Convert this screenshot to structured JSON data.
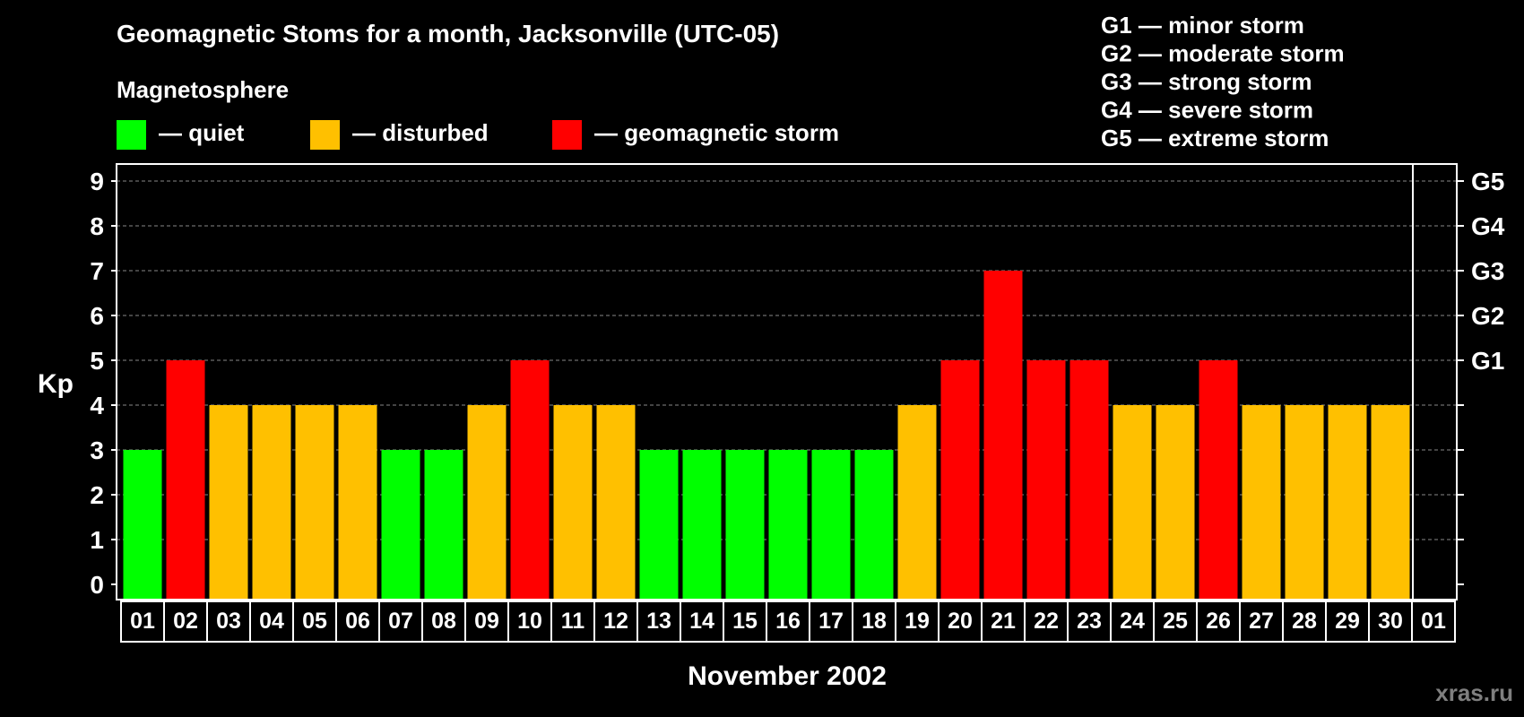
{
  "chart_data": {
    "type": "bar",
    "title": "Geomagnetic Stoms for a month, Jacksonville (UTC-05)",
    "xlabel": "November 2002",
    "ylabel": "Kp",
    "ylim": [
      0,
      9
    ],
    "yticks": [
      "0",
      "1",
      "2",
      "3",
      "4",
      "5",
      "6",
      "7",
      "8",
      "9"
    ],
    "categories": [
      "01",
      "02",
      "03",
      "04",
      "05",
      "06",
      "07",
      "08",
      "09",
      "10",
      "11",
      "12",
      "13",
      "14",
      "15",
      "16",
      "17",
      "18",
      "19",
      "20",
      "21",
      "22",
      "23",
      "24",
      "25",
      "26",
      "27",
      "28",
      "29",
      "30",
      "01"
    ],
    "values": [
      3,
      5,
      4,
      4,
      4,
      4,
      3,
      3,
      4,
      5,
      4,
      4,
      3,
      3,
      3,
      3,
      3,
      3,
      4,
      5,
      7,
      5,
      5,
      4,
      4,
      5,
      4,
      4,
      4,
      4,
      null
    ],
    "grid": "dashed horizontal",
    "right_axis": [
      {
        "label": "G1",
        "kp": 5
      },
      {
        "label": "G2",
        "kp": 6
      },
      {
        "label": "G3",
        "kp": 7
      },
      {
        "label": "G4",
        "kp": 8
      },
      {
        "label": "G5",
        "kp": 9
      }
    ],
    "legend": {
      "title": "Magnetosphere",
      "items": [
        {
          "label": "— quiet",
          "color": "#00ff00"
        },
        {
          "label": "— disturbed",
          "color": "#ffc000"
        },
        {
          "label": "— geomagnetic storm",
          "color": "#ff0000"
        }
      ]
    },
    "g_scale": [
      "G1 — minor storm",
      "G2 — moderate storm",
      "G3 — strong storm",
      "G4 — severe storm",
      "G5 — extreme storm"
    ],
    "colors": {
      "quiet": "#00ff00",
      "disturbed": "#ffc000",
      "storm": "#ff0000"
    }
  },
  "watermark": "xras.ru"
}
